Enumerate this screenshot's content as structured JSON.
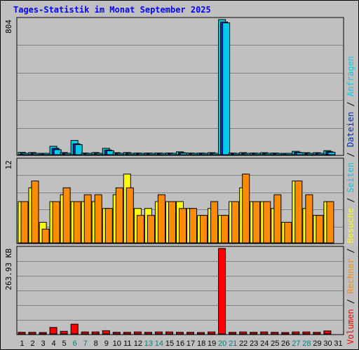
{
  "title": "Tages-Statistik im Monat September 2025",
  "colors": {
    "background": "#c0c0c0",
    "title": "#0000ff",
    "grid": "#808080",
    "day_normal": "#000000",
    "day_weekend": "#008080",
    "day_current": "#008080",
    "anfragen": "#00d0e8",
    "dateien": "#0030c0",
    "seiten": "#00c8e8",
    "besuche": "#ffff00",
    "rechner": "#ff8c00",
    "volumen": "#ff0000"
  },
  "legend": {
    "items": [
      {
        "key": "volumen",
        "label": "Volumen"
      },
      {
        "key": "rechner",
        "label": "Rechner"
      },
      {
        "key": "besuche",
        "label": "Besuche"
      },
      {
        "key": "seiten",
        "label": "Seiten"
      },
      {
        "key": "dateien",
        "label": "Dateien"
      },
      {
        "key": "anfragen",
        "label": "Anfragen"
      }
    ],
    "separator": " / "
  },
  "chart_data": [
    {
      "type": "bar",
      "panel": "hits",
      "max_label": "804",
      "ylim": [
        0,
        804
      ],
      "categories": [
        "1",
        "2",
        "3",
        "4",
        "5",
        "6",
        "7",
        "8",
        "9",
        "10",
        "11",
        "12",
        "13",
        "14",
        "15",
        "16",
        "17",
        "18",
        "19",
        "20",
        "21",
        "22",
        "23",
        "24",
        "25",
        "26",
        "27",
        "28",
        "29",
        "30",
        "31"
      ],
      "weekend_days": [
        6,
        7,
        13,
        14,
        20,
        21,
        27,
        28
      ],
      "series": [
        {
          "name": "Anfragen",
          "color": "#00d0e8",
          "values": [
            14,
            13,
            5,
            50,
            13,
            85,
            10,
            13,
            38,
            12,
            13,
            10,
            10,
            10,
            10,
            17,
            10,
            10,
            12,
            804,
            10,
            12,
            10,
            12,
            10,
            6,
            20,
            12,
            12,
            24,
            0
          ]
        },
        {
          "name": "Dateien",
          "color": "#0030c0",
          "values": [
            8,
            8,
            3,
            38,
            8,
            65,
            6,
            8,
            28,
            7,
            8,
            6,
            6,
            6,
            6,
            12,
            6,
            6,
            8,
            790,
            6,
            8,
            6,
            8,
            6,
            4,
            14,
            8,
            8,
            18,
            0
          ]
        },
        {
          "name": "Seiten",
          "color": "#00c8e8",
          "values": [
            6,
            6,
            2,
            30,
            6,
            60,
            4,
            6,
            24,
            5,
            6,
            4,
            4,
            4,
            4,
            10,
            4,
            4,
            6,
            785,
            4,
            6,
            4,
            6,
            4,
            2,
            12,
            6,
            6,
            14,
            0
          ]
        }
      ]
    },
    {
      "type": "bar",
      "panel": "visits",
      "max_label": "12",
      "ylim": [
        0,
        12
      ],
      "categories": [
        "1",
        "2",
        "3",
        "4",
        "5",
        "6",
        "7",
        "8",
        "9",
        "10",
        "11",
        "12",
        "13",
        "14",
        "15",
        "16",
        "17",
        "18",
        "19",
        "20",
        "21",
        "22",
        "23",
        "24",
        "25",
        "26",
        "27",
        "28",
        "29",
        "30",
        "31"
      ],
      "series": [
        {
          "name": "Besuche",
          "color": "#ffff00",
          "values": [
            6,
            8,
            3,
            6,
            7,
            6,
            6,
            6,
            5,
            7,
            10,
            5,
            5,
            6,
            6,
            6,
            5,
            4,
            5,
            4,
            6,
            8,
            6,
            6,
            5,
            3,
            9,
            5,
            4,
            6,
            0
          ]
        },
        {
          "name": "Rechner",
          "color": "#ff8c00",
          "values": [
            6,
            9,
            2,
            6,
            8,
            6,
            7,
            7,
            5,
            8,
            8,
            4,
            4,
            7,
            6,
            5,
            5,
            4,
            6,
            4,
            6,
            10,
            6,
            6,
            7,
            3,
            9,
            7,
            4,
            6,
            0
          ]
        }
      ]
    },
    {
      "type": "bar",
      "panel": "volume",
      "max_label": "263.93 KB",
      "ylim": [
        0,
        263.93
      ],
      "unit": "KB",
      "categories": [
        "1",
        "2",
        "3",
        "4",
        "5",
        "6",
        "7",
        "8",
        "9",
        "10",
        "11",
        "12",
        "13",
        "14",
        "15",
        "16",
        "17",
        "18",
        "19",
        "20",
        "21",
        "22",
        "23",
        "24",
        "25",
        "26",
        "27",
        "28",
        "29",
        "30",
        "31"
      ],
      "series": [
        {
          "name": "Volumen",
          "color": "#ff0000",
          "values": [
            5,
            5,
            3,
            20,
            8,
            30,
            6,
            6,
            10,
            5,
            5,
            6,
            5,
            6,
            6,
            5,
            5,
            4,
            6,
            263.93,
            5,
            6,
            5,
            6,
            5,
            3,
            6,
            6,
            5,
            9,
            0
          ]
        }
      ]
    }
  ]
}
